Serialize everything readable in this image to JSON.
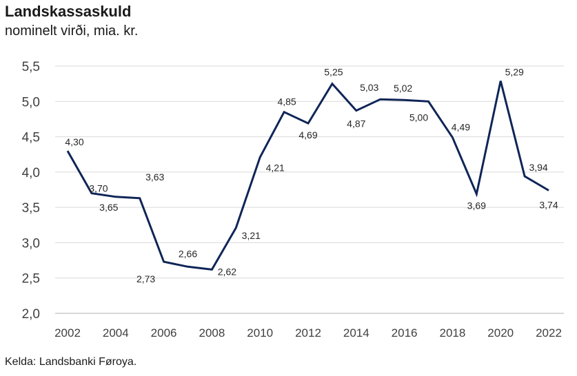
{
  "chart_data": {
    "type": "line",
    "title": "Landskassaskuld",
    "subtitle": "nominelt virði, mia. kr.",
    "source": "Kelda: Landsbanki Føroya.",
    "x": [
      2002,
      2003,
      2004,
      2005,
      2006,
      2007,
      2008,
      2009,
      2010,
      2011,
      2012,
      2013,
      2014,
      2015,
      2016,
      2017,
      2018,
      2019,
      2020,
      2021,
      2022
    ],
    "series": [
      {
        "values": [
          4.3,
          3.7,
          3.65,
          3.63,
          2.73,
          2.66,
          2.62,
          3.21,
          4.21,
          4.85,
          4.69,
          5.25,
          4.87,
          5.03,
          5.02,
          5.0,
          4.49,
          3.69,
          5.29,
          3.94,
          3.74
        ],
        "labels": [
          "4,30",
          "3,70",
          "3,65",
          "3,63",
          "2,73",
          "2,66",
          "2,62",
          "3,21",
          "4,21",
          "4,85",
          "4,69",
          "5,25",
          "4,87",
          "5,03",
          "5,02",
          "5,00",
          "4,49",
          "3,69",
          "5,29",
          "3,94",
          "3,74"
        ],
        "color": "#0f2557"
      }
    ],
    "yticks": [
      2.0,
      2.5,
      3.0,
      3.5,
      4.0,
      4.5,
      5.0,
      5.5
    ],
    "ytick_labels": [
      "2,0",
      "2,5",
      "3,0",
      "3,5",
      "4,0",
      "4,5",
      "5,0",
      "5,5"
    ],
    "xticks": [
      2002,
      2004,
      2006,
      2008,
      2010,
      2012,
      2014,
      2016,
      2018,
      2020,
      2022
    ],
    "xtick_labels": [
      "2002",
      "2004",
      "2006",
      "2008",
      "2010",
      "2012",
      "2014",
      "2016",
      "2018",
      "2020",
      "2022"
    ],
    "ylim": [
      2.0,
      5.5
    ],
    "xlim": [
      2002,
      2022
    ],
    "grid": true,
    "legend": "none",
    "colors": {
      "line": "#0f2557",
      "grid": "#d9d9d9",
      "axis": "#bfbfbf"
    }
  }
}
